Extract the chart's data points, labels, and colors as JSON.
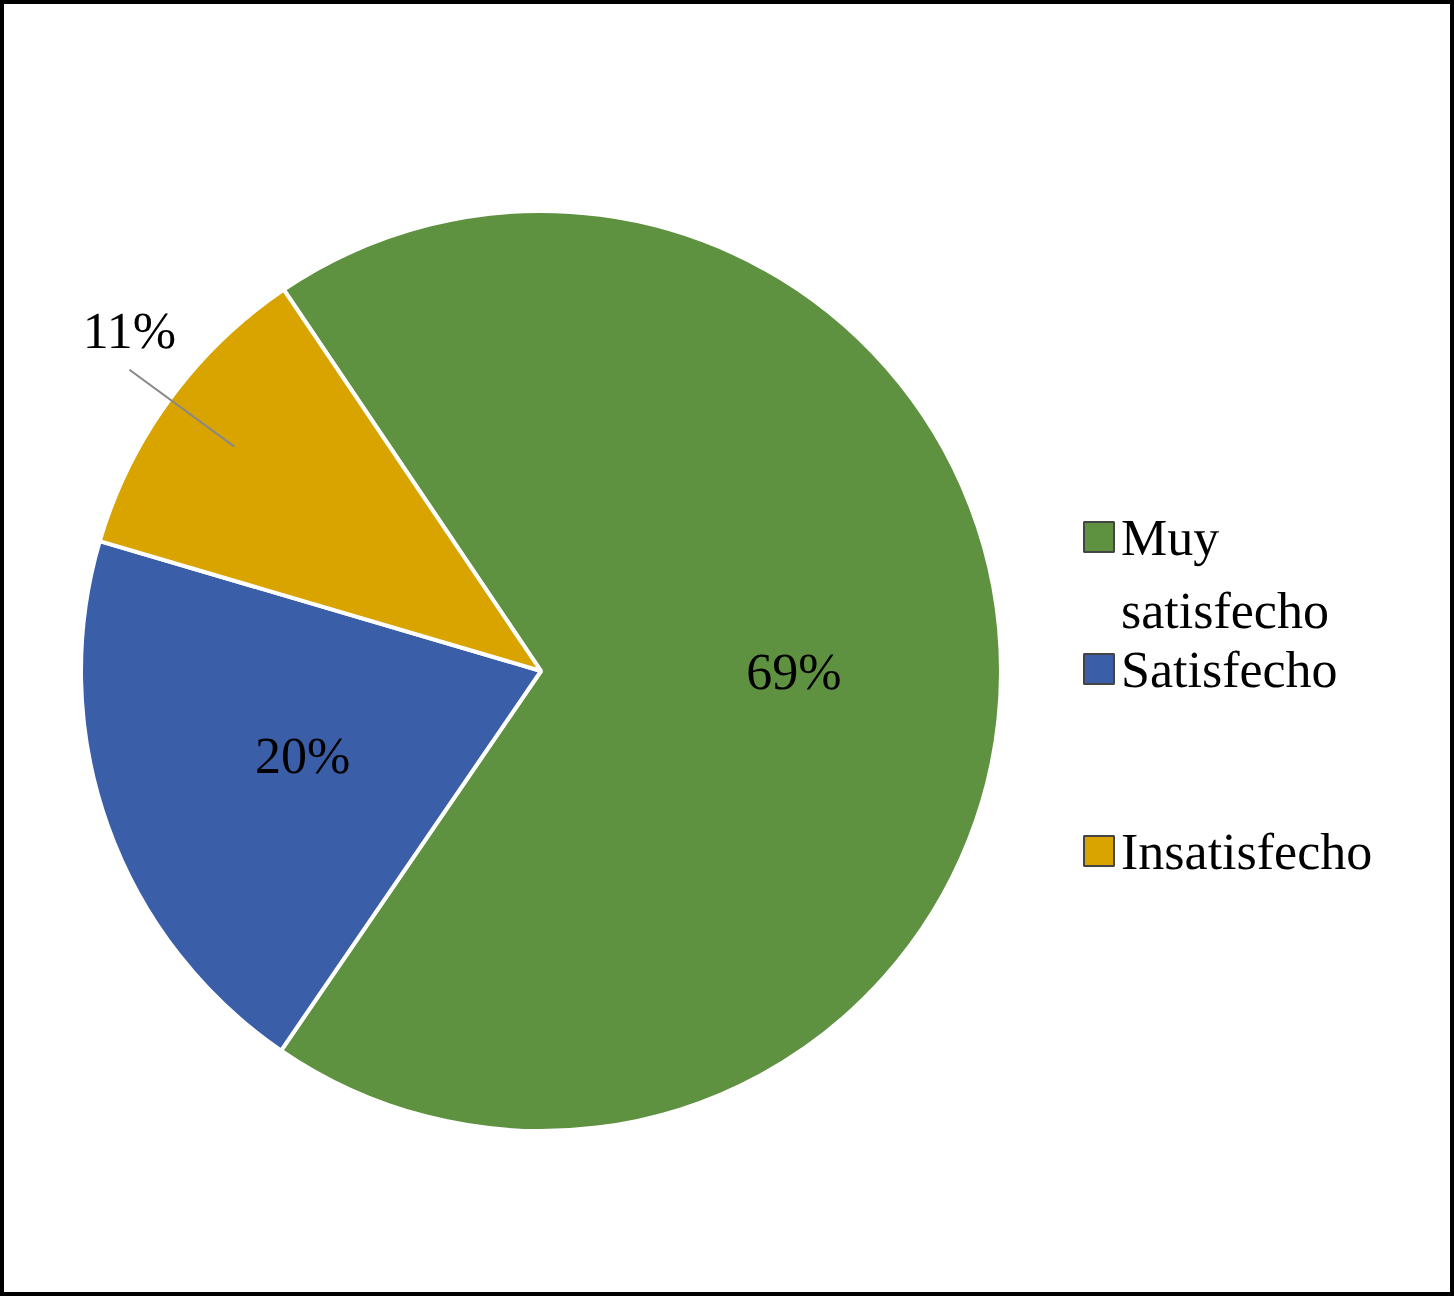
{
  "chart_data": {
    "type": "pie",
    "categories": [
      "Muy satisfecho",
      "Satisfecho",
      "Insatisfecho"
    ],
    "values": [
      69,
      20,
      11
    ],
    "colors": [
      "#5e9140",
      "#3a5fa8",
      "#d9a300"
    ],
    "value_labels": [
      "69%",
      "20%",
      "11%"
    ],
    "legend": "right"
  }
}
